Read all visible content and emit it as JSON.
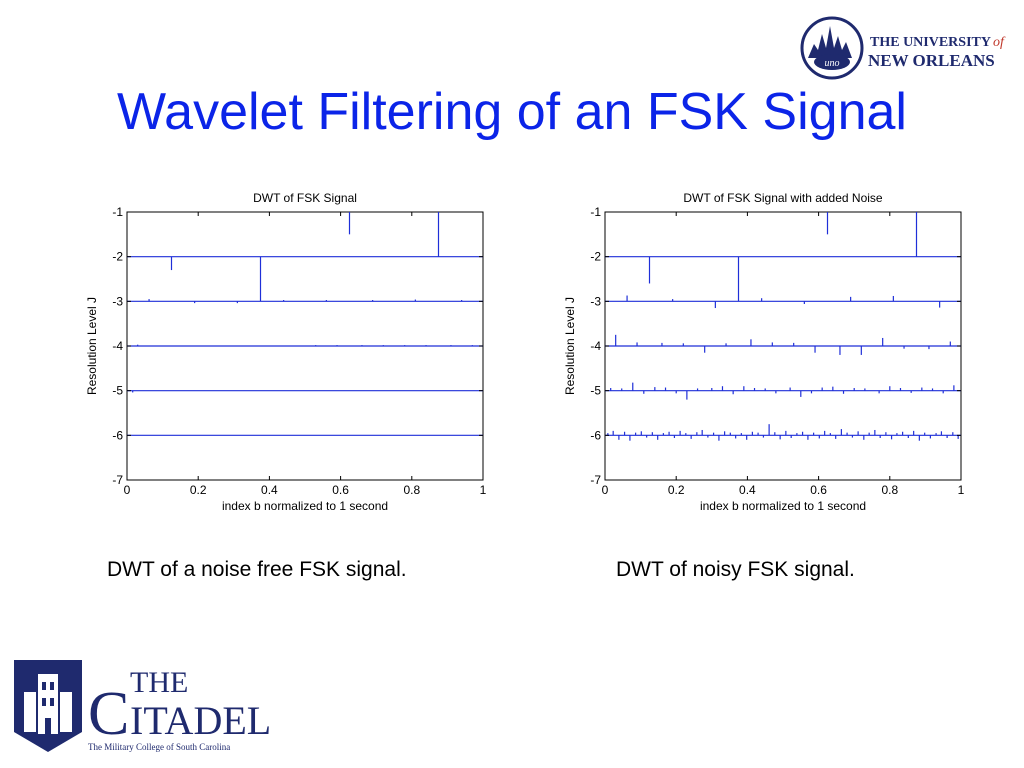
{
  "slide": {
    "title": "Wavelet Filtering of an FSK Signal",
    "captions": [
      "DWT of a noise free FSK signal.",
      "DWT of noisy FSK signal."
    ]
  },
  "logos": {
    "uno": {
      "text_line1": "THE UNIVERSITY",
      "text_of": "of",
      "text_line2": "NEW ORLEANS",
      "seal_text": "uno"
    },
    "citadel": {
      "word_the": "THE",
      "word_c": "C",
      "word_rest": "ITADEL",
      "subtitle": "The Military College of South Carolina"
    }
  },
  "colors": {
    "title": "#0b24e8",
    "series": "#1f2fd8",
    "axis": "#000000"
  },
  "chart_data": [
    {
      "type": "line",
      "title": "DWT of FSK Signal",
      "xlabel": "index b normalized to 1 second",
      "ylabel": "Resolution Level J",
      "xlim": [
        0,
        1
      ],
      "ylim": [
        -7,
        -1
      ],
      "xticks": [
        "0",
        "0.2",
        "0.4",
        "0.6",
        "0.8",
        "1"
      ],
      "yticks": [
        "-1",
        "-2",
        "-3",
        "-4",
        "-5",
        "-6",
        "-7"
      ],
      "levels": [
        {
          "level": -2,
          "stems": [
            [
              0.125,
              -0.3
            ],
            [
              0.375,
              -1.0
            ]
          ]
        },
        {
          "level": -3,
          "stems": [
            [
              0.062,
              0.05
            ],
            [
              0.19,
              -0.04
            ],
            [
              0.31,
              -0.04
            ],
            [
              0.44,
              0.03
            ],
            [
              0.56,
              0.03
            ],
            [
              0.69,
              0.03
            ],
            [
              0.81,
              0.04
            ],
            [
              0.94,
              0.03
            ]
          ]
        },
        {
          "level": -4,
          "stems": [
            [
              0.03,
              0.03
            ],
            [
              0.53,
              0.02
            ],
            [
              0.59,
              0.02
            ],
            [
              0.66,
              0.02
            ],
            [
              0.72,
              0.02
            ],
            [
              0.78,
              0.02
            ],
            [
              0.84,
              0.02
            ],
            [
              0.91,
              0.02
            ],
            [
              0.97,
              0.02
            ]
          ]
        },
        {
          "level": -5,
          "stems": [
            [
              0.016,
              -0.04
            ]
          ]
        },
        {
          "level": -6,
          "stems": []
        },
        {
          "level": -1,
          "stems": [
            [
              0.625,
              -0.5
            ],
            [
              0.875,
              -1.0
            ]
          ]
        }
      ]
    },
    {
      "type": "line",
      "title": "DWT of FSK Signal with added Noise",
      "xlabel": "index b normalized to 1 second",
      "ylabel": "Resolution Level J",
      "xlim": [
        0,
        1
      ],
      "ylim": [
        -7,
        -1
      ],
      "xticks": [
        "0",
        "0.2",
        "0.4",
        "0.6",
        "0.8",
        "1"
      ],
      "yticks": [
        "-1",
        "-2",
        "-3",
        "-4",
        "-5",
        "-6",
        "-7"
      ],
      "levels": [
        {
          "level": -1,
          "stems": [
            [
              0.625,
              -0.5
            ],
            [
              0.875,
              -1.0
            ]
          ]
        },
        {
          "level": -2,
          "stems": [
            [
              0.125,
              -0.6
            ],
            [
              0.375,
              -1.0
            ]
          ]
        },
        {
          "level": -3,
          "stems": [
            [
              0.062,
              0.13
            ],
            [
              0.19,
              0.05
            ],
            [
              0.31,
              -0.15
            ],
            [
              0.44,
              0.07
            ],
            [
              0.56,
              -0.06
            ],
            [
              0.69,
              0.1
            ],
            [
              0.81,
              0.12
            ],
            [
              0.94,
              -0.14
            ]
          ]
        },
        {
          "level": -4,
          "stems": [
            [
              0.03,
              0.25
            ],
            [
              0.09,
              0.08
            ],
            [
              0.16,
              0.07
            ],
            [
              0.22,
              0.06
            ],
            [
              0.28,
              -0.15
            ],
            [
              0.34,
              0.06
            ],
            [
              0.41,
              0.15
            ],
            [
              0.47,
              0.08
            ],
            [
              0.53,
              0.07
            ],
            [
              0.59,
              -0.15
            ],
            [
              0.66,
              -0.2
            ],
            [
              0.72,
              -0.2
            ],
            [
              0.78,
              0.18
            ],
            [
              0.84,
              -0.06
            ],
            [
              0.91,
              -0.07
            ],
            [
              0.97,
              0.1
            ]
          ]
        },
        {
          "level": -5,
          "stems": [
            [
              0.016,
              0.06
            ],
            [
              0.047,
              0.05
            ],
            [
              0.078,
              0.18
            ],
            [
              0.109,
              -0.07
            ],
            [
              0.14,
              0.08
            ],
            [
              0.17,
              0.07
            ],
            [
              0.2,
              -0.06
            ],
            [
              0.23,
              -0.2
            ],
            [
              0.26,
              0.05
            ],
            [
              0.3,
              0.06
            ],
            [
              0.33,
              0.1
            ],
            [
              0.36,
              -0.08
            ],
            [
              0.39,
              0.1
            ],
            [
              0.42,
              0.06
            ],
            [
              0.45,
              0.05
            ],
            [
              0.48,
              -0.06
            ],
            [
              0.52,
              0.07
            ],
            [
              0.55,
              -0.14
            ],
            [
              0.58,
              -0.06
            ],
            [
              0.61,
              0.07
            ],
            [
              0.64,
              0.09
            ],
            [
              0.67,
              -0.07
            ],
            [
              0.7,
              0.06
            ],
            [
              0.73,
              0.05
            ],
            [
              0.77,
              -0.06
            ],
            [
              0.8,
              0.1
            ],
            [
              0.83,
              0.06
            ],
            [
              0.86,
              -0.05
            ],
            [
              0.89,
              0.07
            ],
            [
              0.92,
              0.05
            ],
            [
              0.95,
              -0.06
            ],
            [
              0.98,
              0.12
            ]
          ]
        },
        {
          "level": -6,
          "stems": [
            [
              0.008,
              0.05
            ],
            [
              0.023,
              0.1
            ],
            [
              0.039,
              -0.1
            ],
            [
              0.055,
              0.08
            ],
            [
              0.07,
              -0.12
            ],
            [
              0.086,
              0.06
            ],
            [
              0.102,
              0.09
            ],
            [
              0.117,
              -0.05
            ],
            [
              0.133,
              0.07
            ],
            [
              0.148,
              -0.1
            ],
            [
              0.164,
              0.05
            ],
            [
              0.18,
              0.08
            ],
            [
              0.195,
              -0.06
            ],
            [
              0.211,
              0.1
            ],
            [
              0.227,
              0.05
            ],
            [
              0.242,
              -0.08
            ],
            [
              0.258,
              0.07
            ],
            [
              0.273,
              0.12
            ],
            [
              0.289,
              -0.05
            ],
            [
              0.305,
              0.06
            ],
            [
              0.32,
              -0.12
            ],
            [
              0.336,
              0.09
            ],
            [
              0.352,
              0.06
            ],
            [
              0.367,
              -0.07
            ],
            [
              0.383,
              0.05
            ],
            [
              0.398,
              -0.1
            ],
            [
              0.414,
              0.08
            ],
            [
              0.43,
              0.06
            ],
            [
              0.445,
              -0.05
            ],
            [
              0.461,
              0.25
            ],
            [
              0.477,
              0.07
            ],
            [
              0.492,
              -0.09
            ],
            [
              0.508,
              0.1
            ],
            [
              0.523,
              -0.06
            ],
            [
              0.539,
              0.05
            ],
            [
              0.555,
              0.08
            ],
            [
              0.57,
              -0.1
            ],
            [
              0.586,
              0.06
            ],
            [
              0.602,
              -0.07
            ],
            [
              0.617,
              0.1
            ],
            [
              0.633,
              0.05
            ],
            [
              0.648,
              -0.08
            ],
            [
              0.664,
              0.14
            ],
            [
              0.68,
              0.06
            ],
            [
              0.695,
              -0.05
            ],
            [
              0.711,
              0.09
            ],
            [
              0.727,
              -0.1
            ],
            [
              0.742,
              0.06
            ],
            [
              0.758,
              0.12
            ],
            [
              0.773,
              -0.06
            ],
            [
              0.789,
              0.07
            ],
            [
              0.805,
              -0.09
            ],
            [
              0.82,
              0.05
            ],
            [
              0.836,
              0.08
            ],
            [
              0.852,
              -0.06
            ],
            [
              0.867,
              0.1
            ],
            [
              0.883,
              -0.12
            ],
            [
              0.898,
              0.06
            ],
            [
              0.914,
              -0.07
            ],
            [
              0.93,
              0.05
            ],
            [
              0.945,
              0.09
            ],
            [
              0.961,
              -0.06
            ],
            [
              0.977,
              0.07
            ],
            [
              0.992,
              -0.08
            ]
          ]
        }
      ]
    }
  ]
}
